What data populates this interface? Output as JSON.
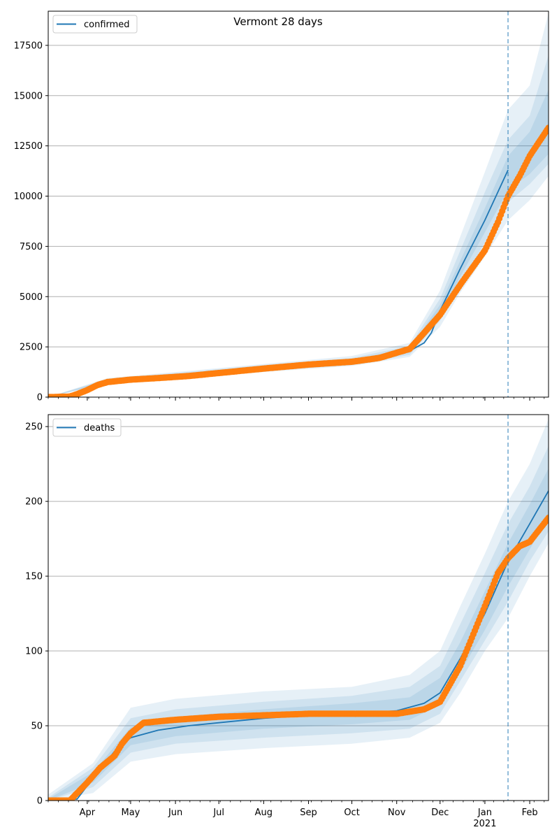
{
  "figure": {
    "title": "Vermont 28 days"
  },
  "colors": {
    "model_line": "#1f77b4",
    "observed_points": "#ff7f0e",
    "band": "#1f77b4",
    "grid": "#b0b0b0",
    "forecast_line": "#1f77b4"
  },
  "x_axis": {
    "month_ticks": [
      {
        "label": "Apr",
        "date": "2020-04-01"
      },
      {
        "label": "May",
        "date": "2020-05-01"
      },
      {
        "label": "Jun",
        "date": "2020-06-01"
      },
      {
        "label": "Jul",
        "date": "2020-07-01"
      },
      {
        "label": "Aug",
        "date": "2020-08-01"
      },
      {
        "label": "Sep",
        "date": "2020-09-01"
      },
      {
        "label": "Oct",
        "date": "2020-10-01"
      },
      {
        "label": "Nov",
        "date": "2020-11-01"
      },
      {
        "label": "Dec",
        "date": "2020-12-01"
      },
      {
        "label": "Jan",
        "date": "2021-01-01"
      },
      {
        "label": "Feb",
        "date": "2021-02-01"
      }
    ],
    "year_label": "2021",
    "start_date": "2020-03-05",
    "end_date": "2021-02-14",
    "forecast_date": "2021-01-17"
  },
  "chart_data": [
    {
      "type": "line",
      "legend": "confirmed",
      "legend_position": "upper-left",
      "grid": "horizontal",
      "ylim": [
        0,
        19200
      ],
      "yticks": [
        0,
        2500,
        5000,
        7500,
        10000,
        12500,
        15000,
        17500
      ],
      "model": [
        [
          "2020-03-05",
          0
        ],
        [
          "2020-03-15",
          10
        ],
        [
          "2020-03-25",
          150
        ],
        [
          "2020-04-05",
          500
        ],
        [
          "2020-04-15",
          780
        ],
        [
          "2020-05-01",
          930
        ],
        [
          "2020-05-20",
          1000
        ],
        [
          "2020-06-10",
          1080
        ],
        [
          "2020-07-01",
          1200
        ],
        [
          "2020-08-01",
          1400
        ],
        [
          "2020-09-01",
          1600
        ],
        [
          "2020-10-01",
          1750
        ],
        [
          "2020-10-20",
          1950
        ],
        [
          "2020-11-10",
          2300
        ],
        [
          "2020-11-20",
          2700
        ],
        [
          "2020-11-25",
          3200
        ],
        [
          "2020-12-01",
          4300
        ],
        [
          "2020-12-15",
          6400
        ],
        [
          "2021-01-01",
          8800
        ],
        [
          "2021-01-17",
          11300
        ]
      ],
      "bands": [
        [
          [
            "2020-03-05",
            0,
            0
          ],
          [
            "2020-04-15",
            650,
            950
          ],
          [
            "2020-06-01",
            900,
            1250
          ],
          [
            "2020-08-01",
            1250,
            1650
          ],
          [
            "2020-10-01",
            1550,
            2050
          ],
          [
            "2020-11-10",
            2000,
            2700
          ],
          [
            "2020-12-01",
            3500,
            5300
          ],
          [
            "2020-12-15",
            5200,
            8000
          ],
          [
            "2021-01-01",
            7000,
            11200
          ],
          [
            "2021-01-17",
            8800,
            14300
          ],
          [
            "2021-02-01",
            9800,
            15500
          ],
          [
            "2021-02-14",
            11000,
            19100
          ]
        ],
        [
          [
            "2020-03-05",
            0,
            0
          ],
          [
            "2020-04-15",
            700,
            900
          ],
          [
            "2020-06-01",
            950,
            1200
          ],
          [
            "2020-08-01",
            1300,
            1600
          ],
          [
            "2020-10-01",
            1600,
            1950
          ],
          [
            "2020-11-10",
            2100,
            2550
          ],
          [
            "2020-12-01",
            3800,
            4900
          ],
          [
            "2020-12-15",
            5600,
            7300
          ],
          [
            "2021-01-01",
            7700,
            10200
          ],
          [
            "2021-01-17",
            9700,
            12800
          ],
          [
            "2021-02-01",
            10600,
            14000
          ],
          [
            "2021-02-14",
            11600,
            17000
          ]
        ],
        [
          [
            "2020-03-05",
            0,
            0
          ],
          [
            "2020-04-15",
            740,
            860
          ],
          [
            "2020-06-01",
            1000,
            1150
          ],
          [
            "2020-08-01",
            1350,
            1520
          ],
          [
            "2020-10-01",
            1660,
            1860
          ],
          [
            "2020-11-10",
            2200,
            2450
          ],
          [
            "2020-12-01",
            4000,
            4600
          ],
          [
            "2020-12-15",
            6000,
            6800
          ],
          [
            "2021-01-01",
            8200,
            9400
          ],
          [
            "2021-01-17",
            10300,
            12000
          ],
          [
            "2021-02-01",
            11100,
            13200
          ],
          [
            "2021-02-14",
            12100,
            15300
          ]
        ]
      ],
      "observed": [
        [
          "2020-03-05",
          0
        ],
        [
          "2020-03-20",
          30
        ],
        [
          "2020-03-25",
          150
        ],
        [
          "2020-04-01",
          350
        ],
        [
          "2020-04-08",
          600
        ],
        [
          "2020-04-15",
          750
        ],
        [
          "2020-05-01",
          870
        ],
        [
          "2020-05-20",
          950
        ],
        [
          "2020-06-10",
          1050
        ],
        [
          "2020-07-01",
          1200
        ],
        [
          "2020-08-01",
          1420
        ],
        [
          "2020-09-01",
          1620
        ],
        [
          "2020-10-01",
          1760
        ],
        [
          "2020-10-20",
          1950
        ],
        [
          "2020-11-10",
          2400
        ],
        [
          "2020-11-20",
          3200
        ],
        [
          "2020-12-01",
          4100
        ],
        [
          "2020-12-15",
          5600
        ],
        [
          "2021-01-01",
          7300
        ],
        [
          "2021-01-10",
          8700
        ],
        [
          "2021-01-17",
          10000
        ],
        [
          "2021-01-25",
          11000
        ],
        [
          "2021-02-01",
          12000
        ],
        [
          "2021-02-14",
          13400
        ]
      ]
    },
    {
      "type": "line",
      "legend": "deaths",
      "legend_position": "upper-left",
      "grid": "horizontal",
      "ylim": [
        0,
        258
      ],
      "yticks": [
        0,
        50,
        100,
        150,
        200,
        250
      ],
      "model": [
        [
          "2020-03-05",
          0
        ],
        [
          "2020-03-25",
          1
        ],
        [
          "2020-04-05",
          15
        ],
        [
          "2020-04-20",
          33
        ],
        [
          "2020-05-01",
          42
        ],
        [
          "2020-05-20",
          47
        ],
        [
          "2020-06-10",
          50
        ],
        [
          "2020-07-01",
          52
        ],
        [
          "2020-08-01",
          55
        ],
        [
          "2020-09-01",
          57
        ],
        [
          "2020-10-01",
          58
        ],
        [
          "2020-11-01",
          60
        ],
        [
          "2020-11-20",
          65
        ],
        [
          "2020-12-01",
          72
        ],
        [
          "2020-12-15",
          95
        ],
        [
          "2021-01-01",
          125
        ],
        [
          "2021-01-17",
          160
        ],
        [
          "2021-02-01",
          185
        ],
        [
          "2021-02-14",
          207
        ]
      ],
      "bands": [
        [
          [
            "2020-03-05",
            0,
            4
          ],
          [
            "2020-04-05",
            5,
            25
          ],
          [
            "2020-05-01",
            26,
            62
          ],
          [
            "2020-06-01",
            31,
            68
          ],
          [
            "2020-08-01",
            35,
            73
          ],
          [
            "2020-10-01",
            38,
            76
          ],
          [
            "2020-11-10",
            42,
            84
          ],
          [
            "2020-12-01",
            52,
            100
          ],
          [
            "2020-12-15",
            72,
            130
          ],
          [
            "2021-01-01",
            100,
            165
          ],
          [
            "2021-01-17",
            122,
            200
          ],
          [
            "2021-02-01",
            150,
            225
          ],
          [
            "2021-02-14",
            172,
            255
          ]
        ],
        [
          [
            "2020-03-05",
            0,
            2
          ],
          [
            "2020-04-05",
            9,
            22
          ],
          [
            "2020-05-01",
            32,
            55
          ],
          [
            "2020-06-01",
            38,
            61
          ],
          [
            "2020-08-01",
            42,
            66
          ],
          [
            "2020-10-01",
            45,
            70
          ],
          [
            "2020-11-10",
            48,
            76
          ],
          [
            "2020-12-01",
            58,
            90
          ],
          [
            "2020-12-15",
            80,
            118
          ],
          [
            "2021-01-01",
            107,
            152
          ],
          [
            "2021-01-17",
            133,
            185
          ],
          [
            "2021-02-01",
            160,
            210
          ],
          [
            "2021-02-14",
            180,
            237
          ]
        ],
        [
          [
            "2020-03-05",
            0,
            1
          ],
          [
            "2020-04-05",
            12,
            19
          ],
          [
            "2020-05-01",
            37,
            49
          ],
          [
            "2020-06-01",
            43,
            56
          ],
          [
            "2020-08-01",
            48,
            61
          ],
          [
            "2020-10-01",
            51,
            65
          ],
          [
            "2020-11-10",
            54,
            69
          ],
          [
            "2020-12-01",
            64,
            82
          ],
          [
            "2020-12-15",
            86,
            106
          ],
          [
            "2021-01-01",
            114,
            140
          ],
          [
            "2021-01-17",
            143,
            172
          ],
          [
            "2021-02-01",
            168,
            198
          ],
          [
            "2021-02-14",
            190,
            222
          ]
        ]
      ],
      "observed": [
        [
          "2020-03-05",
          0
        ],
        [
          "2020-03-20",
          0
        ],
        [
          "2020-03-25",
          5
        ],
        [
          "2020-04-01",
          12
        ],
        [
          "2020-04-10",
          22
        ],
        [
          "2020-04-20",
          30
        ],
        [
          "2020-04-25",
          38
        ],
        [
          "2020-05-01",
          45
        ],
        [
          "2020-05-10",
          52
        ],
        [
          "2020-06-01",
          54
        ],
        [
          "2020-07-01",
          56
        ],
        [
          "2020-08-01",
          57
        ],
        [
          "2020-09-01",
          58
        ],
        [
          "2020-10-01",
          58
        ],
        [
          "2020-11-01",
          58
        ],
        [
          "2020-11-20",
          61
        ],
        [
          "2020-12-01",
          66
        ],
        [
          "2020-12-15",
          90
        ],
        [
          "2021-01-01",
          130
        ],
        [
          "2021-01-10",
          152
        ],
        [
          "2021-01-17",
          162
        ],
        [
          "2021-01-25",
          170
        ],
        [
          "2021-02-01",
          173
        ],
        [
          "2021-02-14",
          189
        ]
      ]
    }
  ]
}
